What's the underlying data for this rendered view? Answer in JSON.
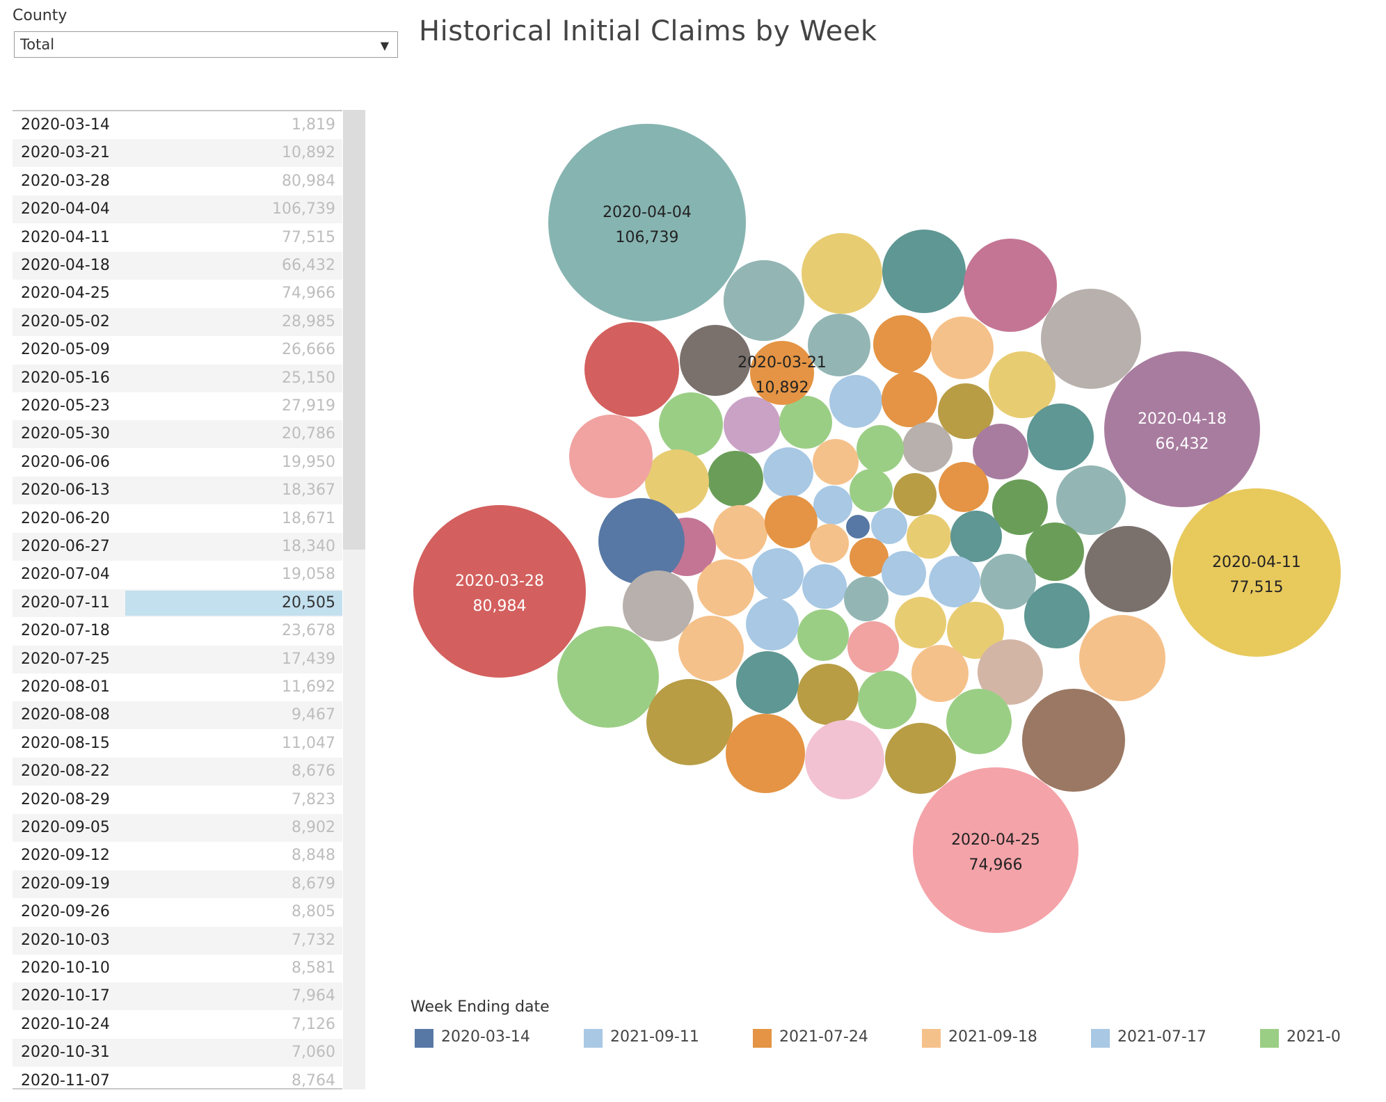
{
  "filter": {
    "label": "County",
    "value": "Total"
  },
  "title": "Historical Initial Claims by Week",
  "table": {
    "rows": [
      {
        "date": "2020-03-14",
        "value": "1,819"
      },
      {
        "date": "2020-03-21",
        "value": "10,892"
      },
      {
        "date": "2020-03-28",
        "value": "80,984"
      },
      {
        "date": "2020-04-04",
        "value": "106,739"
      },
      {
        "date": "2020-04-11",
        "value": "77,515"
      },
      {
        "date": "2020-04-18",
        "value": "66,432"
      },
      {
        "date": "2020-04-25",
        "value": "74,966"
      },
      {
        "date": "2020-05-02",
        "value": "28,985"
      },
      {
        "date": "2020-05-09",
        "value": "26,666"
      },
      {
        "date": "2020-05-16",
        "value": "25,150"
      },
      {
        "date": "2020-05-23",
        "value": "27,919"
      },
      {
        "date": "2020-05-30",
        "value": "20,786"
      },
      {
        "date": "2020-06-06",
        "value": "19,950"
      },
      {
        "date": "2020-06-13",
        "value": "18,367"
      },
      {
        "date": "2020-06-20",
        "value": "18,671"
      },
      {
        "date": "2020-06-27",
        "value": "18,340"
      },
      {
        "date": "2020-07-04",
        "value": "19,058"
      },
      {
        "date": "2020-07-11",
        "value": "20,505",
        "selected": true
      },
      {
        "date": "2020-07-18",
        "value": "23,678"
      },
      {
        "date": "2020-07-25",
        "value": "17,439"
      },
      {
        "date": "2020-08-01",
        "value": "11,692"
      },
      {
        "date": "2020-08-08",
        "value": "9,467"
      },
      {
        "date": "2020-08-15",
        "value": "11,047"
      },
      {
        "date": "2020-08-22",
        "value": "8,676"
      },
      {
        "date": "2020-08-29",
        "value": "7,823"
      },
      {
        "date": "2020-09-05",
        "value": "8,902"
      },
      {
        "date": "2020-09-12",
        "value": "8,848"
      },
      {
        "date": "2020-09-19",
        "value": "8,679"
      },
      {
        "date": "2020-09-26",
        "value": "8,805"
      },
      {
        "date": "2020-10-03",
        "value": "7,732"
      },
      {
        "date": "2020-10-10",
        "value": "8,581"
      },
      {
        "date": "2020-10-17",
        "value": "7,964"
      },
      {
        "date": "2020-10-24",
        "value": "7,126"
      },
      {
        "date": "2020-10-31",
        "value": "7,060"
      },
      {
        "date": "2020-11-07",
        "value": "8,764"
      }
    ]
  },
  "legend": {
    "title": "Week Ending date",
    "items": [
      {
        "label": "2020-03-14",
        "color": "#5778a4"
      },
      {
        "label": "2021-09-11",
        "color": "#a8c8e4"
      },
      {
        "label": "2021-07-24",
        "color": "#e49444"
      },
      {
        "label": "2021-09-18",
        "color": "#f5c18a"
      },
      {
        "label": "2021-07-17",
        "color": "#a8c8e4"
      },
      {
        "label": "2021-0",
        "color": "#9bce85"
      }
    ]
  },
  "chart_data": {
    "type": "bubble",
    "title": "Historical Initial Claims by Week",
    "size_by": "Initial Claims",
    "color_by": "Week Ending date",
    "labeled_bubbles": [
      {
        "date": "2020-04-04",
        "value": 106739,
        "label": "106,739",
        "color": "#86b4b1",
        "label_color": "#222"
      },
      {
        "date": "2020-03-28",
        "value": 80984,
        "label": "80,984",
        "color": "#d3605e",
        "label_color": "#ffffff"
      },
      {
        "date": "2020-04-11",
        "value": 77515,
        "label": "77,515",
        "color": "#e8c95c",
        "label_color": "#222"
      },
      {
        "date": "2020-04-25",
        "value": 74966,
        "label": "74,966",
        "color": "#f4a3a9",
        "label_color": "#222"
      },
      {
        "date": "2020-04-18",
        "value": 66432,
        "label": "66,432",
        "color": "#a87c9f",
        "label_color": "#ffffff"
      },
      {
        "date": "2020-03-21",
        "value": 10892,
        "label": "10,892",
        "color": "#e49444",
        "label_color": "#222"
      }
    ],
    "unlabeled_bubbles": [
      {
        "value": 28985,
        "color": "#9b7863"
      },
      {
        "value": 26666,
        "color": "#9bce85"
      },
      {
        "value": 25150,
        "color": "#b89d45"
      },
      {
        "value": 27919,
        "color": "#b8b0ac"
      },
      {
        "value": 20786,
        "color": "#c47594"
      },
      {
        "value": 19950,
        "color": "#5e9793"
      },
      {
        "value": 18367,
        "color": "#f5c18a"
      },
      {
        "value": 18671,
        "color": "#d3605e"
      },
      {
        "value": 18340,
        "color": "#e8cc72"
      },
      {
        "value": 19058,
        "color": "#7a706c"
      },
      {
        "value": 20505,
        "color": "#f5c18a"
      },
      {
        "value": 23678,
        "color": "#e49444"
      },
      {
        "value": 17439,
        "color": "#5e9793"
      },
      {
        "value": 11692,
        "color": "#93b6b4"
      },
      {
        "value": 9467,
        "color": "#f0a3a1"
      },
      {
        "value": 11047,
        "color": "#5778a4"
      },
      {
        "value": 8676,
        "color": "#b8b0ac"
      },
      {
        "value": 7823,
        "color": "#9bce85"
      },
      {
        "value": 8902,
        "color": "#f5c18a"
      },
      {
        "value": 8848,
        "color": "#b89d45"
      },
      {
        "value": 8679,
        "color": "#f2c2d2"
      },
      {
        "value": 8805,
        "color": "#e8cc72"
      },
      {
        "value": 7732,
        "color": "#5e9793"
      },
      {
        "value": 8581,
        "color": "#9bce85"
      },
      {
        "value": 7964,
        "color": "#6a9e58"
      },
      {
        "value": 7126,
        "color": "#e49444"
      },
      {
        "value": 7060,
        "color": "#f5c18a"
      },
      {
        "value": 8764,
        "color": "#7a706c"
      }
    ]
  }
}
